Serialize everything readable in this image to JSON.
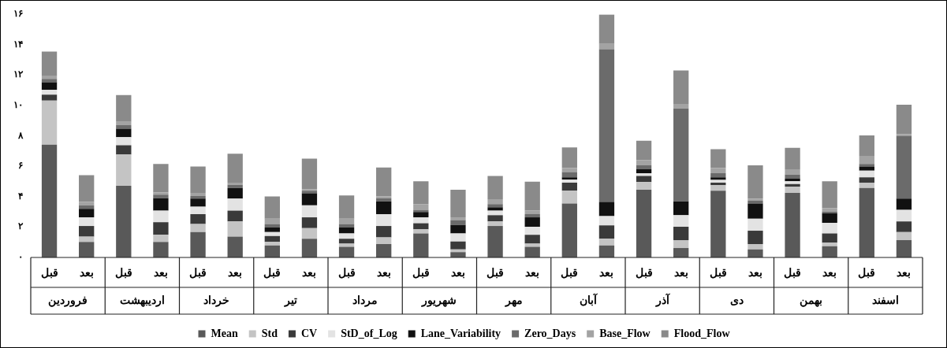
{
  "chart_data": {
    "type": "bar",
    "stacked": true,
    "legend": "bottom",
    "grid": false,
    "categories": [
      "قبل",
      "بعد",
      "قبل",
      "بعد",
      "قبل",
      "بعد",
      "قبل",
      "بعد",
      "قبل",
      "بعد",
      "قبل",
      "بعد",
      "قبل",
      "بعد",
      "قبل",
      "بعد",
      "قبل",
      "بعد",
      "قبل",
      "بعد",
      "قبل",
      "بعد",
      "قبل",
      "بعد"
    ],
    "annotations": [
      "فروردین",
      "اردیبهشت",
      "خرداد",
      "تیر",
      "مرداد",
      "شهریور",
      "مهر",
      "آبان",
      "آذر",
      "دی",
      "بهمن",
      "اسفند"
    ],
    "ylim": [
      0,
      16
    ],
    "yticks": [
      {
        "value": 0,
        "label": "۰"
      },
      {
        "value": 2,
        "label": "۲"
      },
      {
        "value": 4,
        "label": "۴"
      },
      {
        "value": 6,
        "label": "۶"
      },
      {
        "value": 8,
        "label": "۸"
      },
      {
        "value": 10,
        "label": "۱۰"
      },
      {
        "value": 12,
        "label": "۱۲"
      },
      {
        "value": 14,
        "label": "۱۴"
      },
      {
        "value": 16,
        "label": "۱۶"
      }
    ],
    "series": [
      {
        "name": "Mean",
        "color": "#595959",
        "values": [
          7.42,
          1.02,
          4.71,
          1.02,
          1.67,
          1.37,
          0.79,
          1.23,
          0.7,
          0.88,
          1.58,
          0.35,
          2.07,
          0.7,
          3.55,
          0.79,
          4.46,
          0.62,
          4.39,
          0.53,
          4.25,
          0.74,
          4.57,
          1.14
        ]
      },
      {
        "name": "Std",
        "color": "#c4c4c4",
        "values": [
          2.9,
          0.35,
          2.06,
          0.47,
          0.53,
          1.0,
          0.23,
          0.7,
          0.21,
          0.44,
          0.27,
          0.18,
          0.3,
          0.21,
          0.84,
          0.44,
          0.5,
          0.52,
          0.36,
          0.35,
          0.41,
          0.23,
          0.35,
          0.53
        ]
      },
      {
        "name": "CV",
        "color": "#3a3a3a",
        "values": [
          0.39,
          0.7,
          0.61,
          0.83,
          0.65,
          0.71,
          0.39,
          0.71,
          0.32,
          0.75,
          0.4,
          0.52,
          0.41,
          0.58,
          0.53,
          0.88,
          0.4,
          0.88,
          0.17,
          0.88,
          0.17,
          0.61,
          0.35,
          0.7
        ]
      },
      {
        "name": "StD_of_Log",
        "color": "#e3e3e3",
        "values": [
          0.32,
          0.57,
          0.53,
          0.76,
          0.49,
          0.79,
          0.26,
          0.79,
          0.35,
          0.78,
          0.39,
          0.53,
          0.3,
          0.53,
          0.21,
          0.61,
          0.18,
          0.76,
          0.18,
          0.79,
          0.18,
          0.7,
          0.44,
          0.76
        ]
      },
      {
        "name": "Lane_Variability",
        "color": "#111111",
        "values": [
          0.5,
          0.56,
          0.56,
          0.82,
          0.53,
          0.7,
          0.3,
          0.79,
          0.39,
          0.84,
          0.35,
          0.56,
          0.22,
          0.62,
          0.14,
          0.94,
          0.26,
          0.91,
          0.17,
          1.0,
          0.17,
          0.62,
          0.27,
          0.74
        ]
      },
      {
        "name": "Zero_Days",
        "color": "#6b6b6b",
        "values": [
          0.22,
          0.23,
          0.23,
          0.23,
          0.17,
          0.21,
          0.23,
          0.17,
          0.23,
          0.21,
          0.14,
          0.32,
          0.21,
          0.21,
          0.35,
          10.05,
          0.26,
          6.12,
          0.27,
          0.18,
          0.27,
          0.12,
          0.17,
          4.13
        ]
      },
      {
        "name": "Base_Flow",
        "color": "#a3a3a3",
        "values": [
          0.22,
          0.23,
          0.23,
          0.15,
          0.21,
          0.14,
          0.35,
          0.1,
          0.35,
          0.11,
          0.38,
          0.18,
          0.32,
          0.23,
          0.27,
          0.35,
          0.35,
          0.3,
          0.35,
          0.14,
          0.35,
          0.23,
          0.53,
          0.12
        ]
      },
      {
        "name": "Flood_Flow",
        "color": "#8a8a8a",
        "values": [
          1.58,
          1.75,
          1.76,
          1.87,
          1.73,
          1.9,
          1.46,
          2.01,
          1.53,
          1.91,
          1.5,
          1.82,
          1.53,
          1.91,
          1.35,
          1.93,
          1.27,
          2.19,
          1.23,
          2.19,
          1.41,
          1.76,
          1.35,
          1.93
        ]
      }
    ]
  }
}
